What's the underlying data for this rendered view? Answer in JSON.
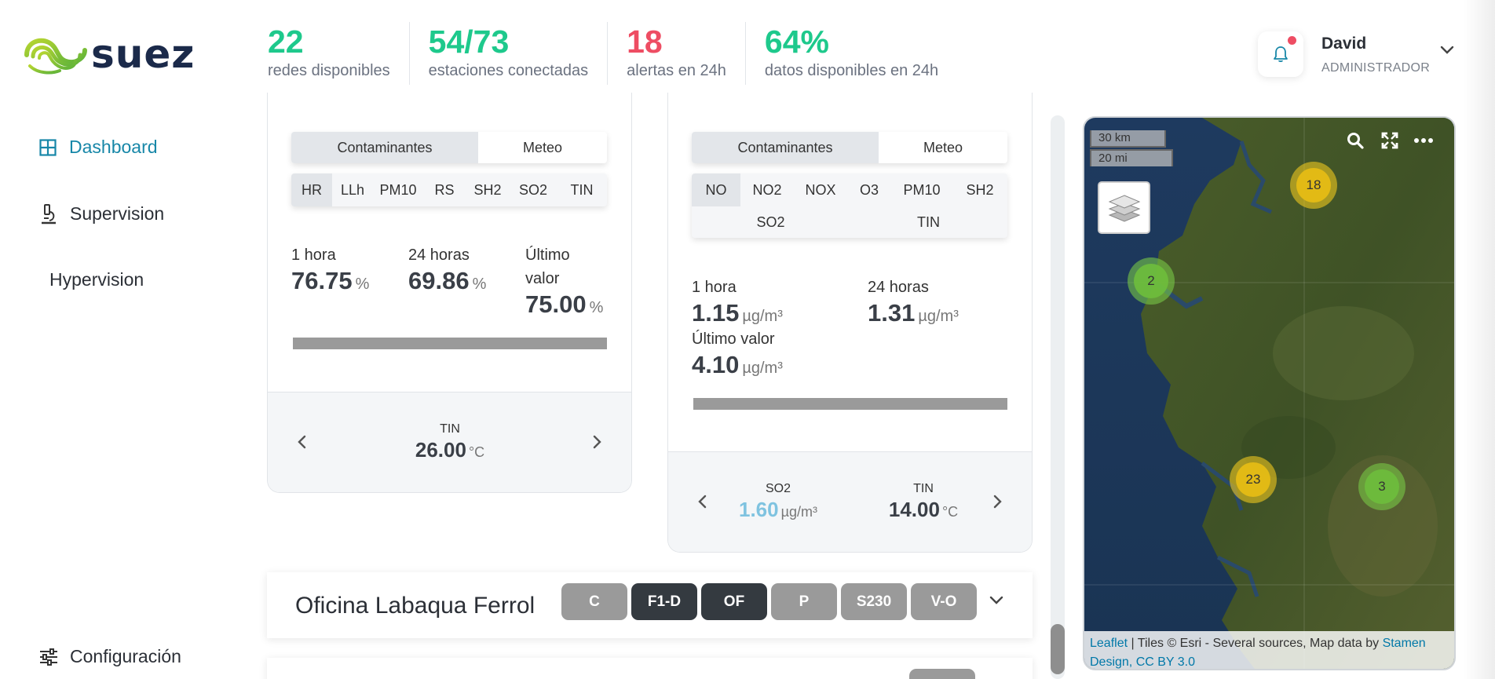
{
  "header": {
    "logo_text": "suez",
    "stats": [
      {
        "value": "22",
        "label": "redes disponibles",
        "color": "#1ec98c"
      },
      {
        "value": "54/73",
        "label": "estaciones conectadas",
        "color": "#1ec98c"
      },
      {
        "value": "18",
        "label": "alertas en 24h",
        "color": "#ee4d63"
      },
      {
        "value": "64%",
        "label": "datos disponibles en 24h",
        "color": "#1ec98c"
      }
    ],
    "user": {
      "name": "David",
      "role": "ADMINISTRADOR"
    }
  },
  "sidebar": {
    "items": [
      {
        "label": "Dashboard",
        "icon": "grid-icon",
        "active": true
      },
      {
        "label": "Supervision",
        "icon": "microscope-icon"
      },
      {
        "label": "Hypervision"
      }
    ],
    "bottom_item": {
      "label": "Configuración",
      "icon": "sliders-icon"
    }
  },
  "card1": {
    "tabs": [
      "Contaminantes",
      "Meteo"
    ],
    "active_tab": "Contaminantes",
    "pollutants": [
      "HR",
      "LLh",
      "PM10",
      "RS",
      "SH2",
      "SO2",
      "TIN"
    ],
    "active_pollutant": "HR",
    "metrics": [
      {
        "label": "1 hora",
        "value": "76.75",
        "unit": "%"
      },
      {
        "label": "24 horas",
        "value": "69.86",
        "unit": "%"
      },
      {
        "label_line1": "Último",
        "label_line2": "valor",
        "value": "75.00",
        "unit": "%"
      }
    ],
    "footer": {
      "label": "TIN",
      "value": "26.00",
      "unit": "°C"
    }
  },
  "card2": {
    "tabs": [
      "Contaminantes",
      "Meteo"
    ],
    "active_tab": "Contaminantes",
    "pollutants_row1": [
      "NO",
      "NO2",
      "NOX",
      "O3",
      "PM10",
      "SH2"
    ],
    "pollutants_row2": [
      "SO2",
      "TIN"
    ],
    "active_pollutant": "NO",
    "metrics": [
      {
        "label": "1 hora",
        "value": "1.15",
        "unit": "µg/m³"
      },
      {
        "label": "24 horas",
        "value": "1.31",
        "unit": "µg/m³"
      },
      {
        "label": "Último valor",
        "value": "4.10",
        "unit": "µg/m³"
      }
    ],
    "footer": [
      {
        "label": "SO2",
        "value": "1.60",
        "unit": "µg/m³"
      },
      {
        "label": "TIN",
        "value": "14.00",
        "unit": "°C"
      }
    ]
  },
  "office": {
    "title": "Oficina Labaqua Ferrol",
    "tags": [
      {
        "label": "C",
        "dark": false
      },
      {
        "label": "F1-D",
        "dark": true
      },
      {
        "label": "OF",
        "dark": true
      },
      {
        "label": "P",
        "dark": false
      },
      {
        "label": "S230",
        "dark": false
      },
      {
        "label": "V-O",
        "dark": false
      }
    ]
  },
  "map": {
    "scale_km": "30 km",
    "scale_mi": "20 mi",
    "clusters": [
      {
        "count": "18",
        "color": "yellow"
      },
      {
        "count": "2",
        "color": "green"
      },
      {
        "count": "23",
        "color": "yellow"
      },
      {
        "count": "3",
        "color": "green"
      }
    ],
    "attribution": {
      "leaflet": "Leaflet",
      "text": " | Tiles © Esri - Several sources, Map data by ",
      "stamen": "Stamen",
      "line2": "Design, CC BY 3.0"
    }
  }
}
